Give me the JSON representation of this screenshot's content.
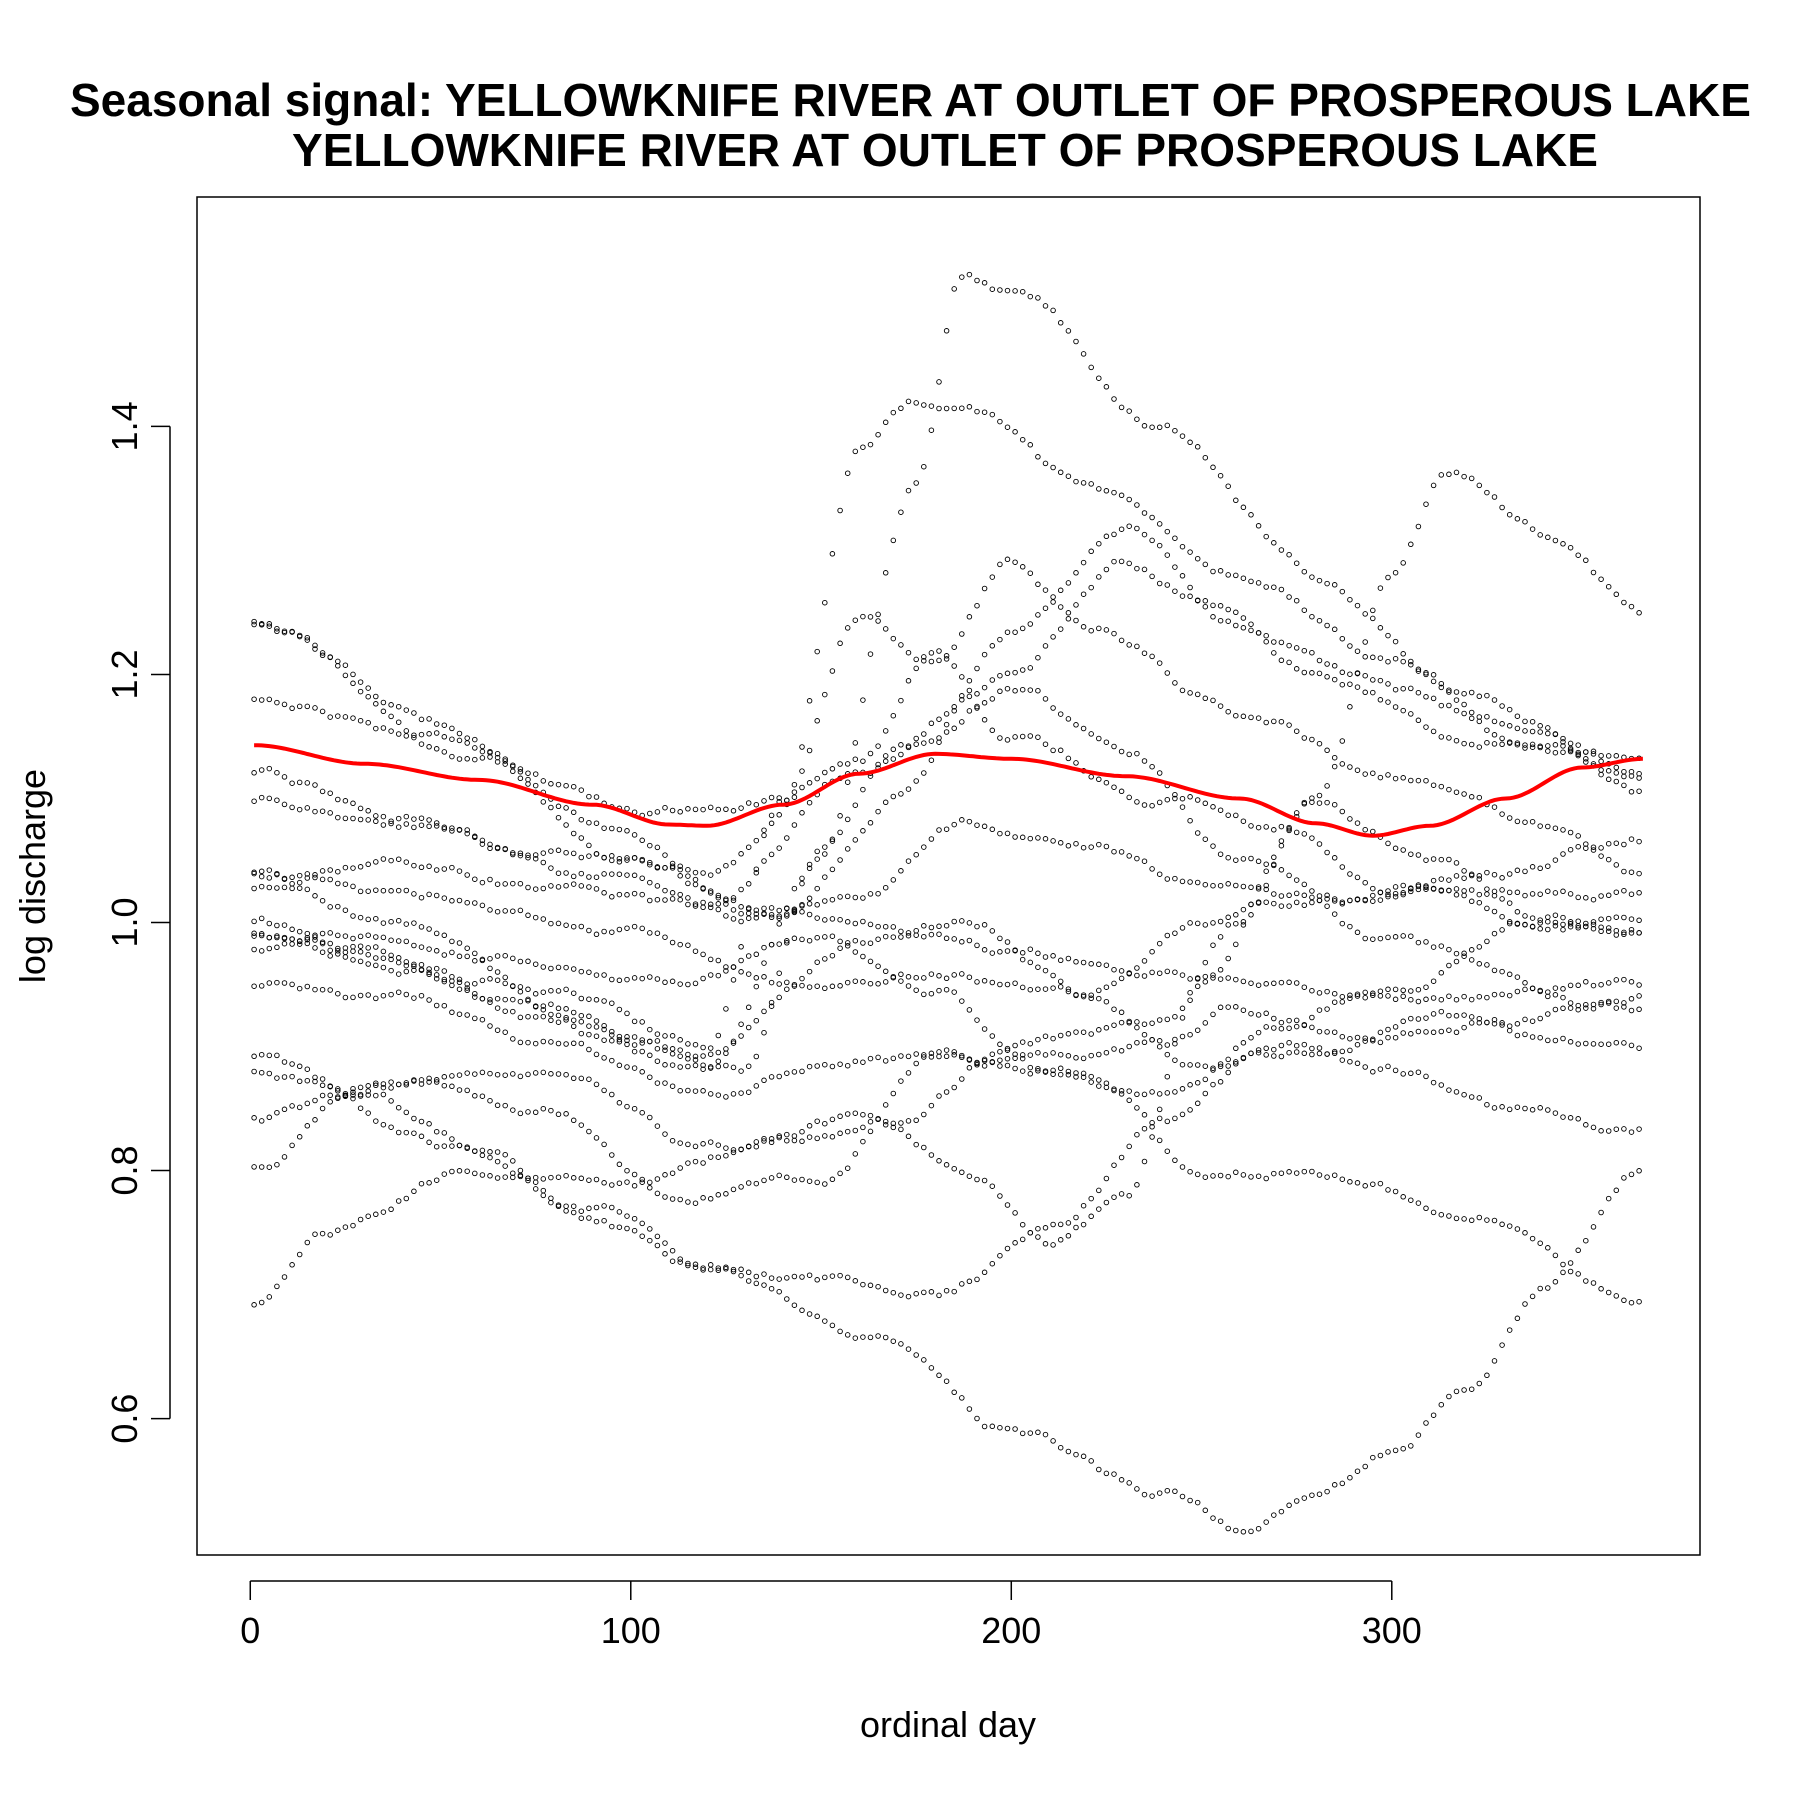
{
  "chart_data": {
    "type": "scatter",
    "title_line1": "Seasonal signal: YELLOWKNIFE RIVER AT OUTLET OF PROSPEROUS LAKE",
    "title_line2": "YELLOWKNIFE RIVER AT OUTLET OF PROSPEROUS LAKE",
    "xlabel": "ordinal day",
    "ylabel": "log discharge",
    "xlim": [
      -14,
      381
    ],
    "ylim": [
      0.49,
      1.585
    ],
    "xticks": [
      0,
      100,
      200,
      300
    ],
    "xtick_labels": [
      "0",
      "100",
      "200",
      "300"
    ],
    "yticks": [
      0.6,
      0.8,
      1.0,
      1.2,
      1.4
    ],
    "ytick_labels": [
      "0.6",
      "0.8",
      "1.0",
      "1.2",
      "1.4"
    ],
    "point_color": "#000000",
    "trend_color": "#ff0000",
    "grid": false,
    "legend": "none",
    "trend_line": {
      "x": [
        1,
        30,
        60,
        90,
        110,
        120,
        140,
        160,
        180,
        200,
        230,
        260,
        280,
        295,
        310,
        330,
        350,
        366
      ],
      "y": [
        1.143,
        1.128,
        1.115,
        1.095,
        1.079,
        1.078,
        1.095,
        1.12,
        1.136,
        1.132,
        1.118,
        1.1,
        1.08,
        1.07,
        1.078,
        1.1,
        1.125,
        1.132
      ]
    },
    "series_knots": [
      {
        "x": [
          1,
          50,
          100,
          130,
          160,
          200,
          240,
          280,
          320,
          366
        ],
        "y": [
          1.243,
          1.16,
          1.07,
          1.01,
          1.0,
          0.98,
          0.96,
          0.94,
          0.94,
          0.95
        ]
      },
      {
        "x": [
          1,
          50,
          100,
          140,
          160,
          180,
          200,
          220,
          260,
          300,
          340,
          366
        ],
        "y": [
          1.18,
          1.15,
          1.09,
          1.1,
          1.25,
          1.21,
          1.29,
          1.24,
          1.17,
          1.12,
          1.08,
          1.04
        ]
      },
      {
        "x": [
          1,
          40,
          80,
          120,
          140,
          160,
          175,
          190,
          220,
          260,
          300,
          340,
          366
        ],
        "y": [
          1.04,
          1.0,
          0.94,
          0.9,
          1.1,
          1.38,
          1.42,
          1.41,
          1.35,
          1.28,
          1.21,
          1.14,
          1.1
        ]
      },
      {
        "x": [
          1,
          40,
          80,
          120,
          150,
          175,
          187,
          200,
          240,
          280,
          320,
          366
        ],
        "y": [
          1.0,
          0.96,
          0.92,
          0.88,
          1.05,
          1.35,
          1.52,
          1.51,
          1.4,
          1.28,
          1.18,
          1.12
        ]
      },
      {
        "x": [
          1,
          60,
          100,
          130,
          150,
          170,
          200,
          230,
          260,
          300,
          366
        ],
        "y": [
          0.99,
          0.95,
          0.9,
          0.88,
          1.06,
          1.14,
          1.19,
          1.14,
          1.05,
          0.98,
          0.93
        ]
      },
      {
        "x": [
          1,
          20,
          60,
          100,
          140,
          170,
          200,
          240,
          260,
          280,
          300,
          315,
          340,
          366
        ],
        "y": [
          0.69,
          0.75,
          0.8,
          0.79,
          0.82,
          0.84,
          0.9,
          0.92,
          1.0,
          1.1,
          1.28,
          1.36,
          1.31,
          1.25
        ]
      },
      {
        "x": [
          1,
          50,
          90,
          120,
          160,
          200,
          240,
          260,
          280,
          300,
          320,
          340,
          366
        ],
        "y": [
          0.89,
          0.82,
          0.77,
          0.72,
          0.67,
          0.59,
          0.54,
          0.51,
          0.53,
          0.57,
          0.62,
          0.7,
          0.8
        ]
      },
      {
        "x": [
          1,
          40,
          80,
          110,
          150,
          180,
          220,
          250,
          280,
          320,
          366
        ],
        "y": [
          0.84,
          0.87,
          0.85,
          0.78,
          0.79,
          0.9,
          0.88,
          0.8,
          0.8,
          0.77,
          0.69
        ]
      },
      {
        "x": [
          1,
          30,
          80,
          120,
          160,
          190,
          210,
          230,
          250,
          280,
          310,
          340,
          366
        ],
        "y": [
          0.8,
          0.87,
          0.87,
          0.82,
          0.84,
          0.8,
          0.74,
          0.78,
          0.95,
          1.1,
          1.05,
          1.0,
          0.99
        ]
      },
      {
        "x": [
          1,
          40,
          80,
          120,
          160,
          200,
          230,
          250,
          280,
          320,
          366
        ],
        "y": [
          1.03,
          1.05,
          1.03,
          1.01,
          1.12,
          1.2,
          1.29,
          1.26,
          1.2,
          1.15,
          1.13
        ]
      },
      {
        "x": [
          1,
          40,
          90,
          130,
          160,
          190,
          220,
          250,
          290,
          330,
          366
        ],
        "y": [
          1.1,
          1.08,
          1.04,
          1.0,
          1.02,
          1.08,
          1.06,
          1.03,
          1.02,
          1.04,
          1.07
        ]
      },
      {
        "x": [
          1,
          30,
          70,
          110,
          150,
          180,
          210,
          240,
          270,
          300,
          340,
          366
        ],
        "y": [
          0.98,
          0.99,
          0.97,
          0.95,
          0.99,
          0.95,
          0.88,
          0.86,
          0.92,
          0.95,
          1.0,
          1.0
        ]
      },
      {
        "x": [
          1,
          40,
          80,
          120,
          160,
          200,
          240,
          260,
          290,
          330,
          366
        ],
        "y": [
          0.95,
          0.94,
          0.9,
          0.86,
          0.89,
          0.89,
          0.9,
          0.93,
          0.91,
          0.92,
          0.94
        ]
      },
      {
        "x": [
          1,
          40,
          80,
          120,
          160,
          190,
          220,
          250,
          280,
          310,
          340,
          366
        ],
        "y": [
          0.99,
          0.97,
          0.93,
          0.89,
          0.98,
          1.0,
          0.94,
          0.88,
          0.9,
          0.93,
          0.91,
          0.9
        ]
      },
      {
        "x": [
          1,
          50,
          100,
          140,
          180,
          220,
          250,
          270,
          290,
          310,
          340,
          366
        ],
        "y": [
          1.04,
          1.02,
          0.99,
          0.95,
          0.96,
          0.94,
          1.0,
          1.02,
          1.02,
          1.03,
          1.0,
          0.99
        ]
      },
      {
        "x": [
          1,
          30,
          60,
          90,
          120,
          150,
          180,
          210,
          240,
          270,
          300,
          330,
          366
        ],
        "y": [
          0.88,
          0.86,
          0.82,
          0.76,
          0.72,
          0.71,
          0.7,
          0.75,
          0.84,
          0.9,
          0.88,
          0.85,
          0.83
        ]
      },
      {
        "x": [
          1,
          60,
          100,
          140,
          170,
          200,
          230,
          260,
          290,
          330,
          366
        ],
        "y": [
          1.24,
          1.13,
          1.05,
          1.0,
          1.1,
          1.24,
          1.32,
          1.24,
          1.2,
          1.16,
          1.12
        ]
      },
      {
        "x": [
          1,
          40,
          80,
          120,
          160,
          180,
          200,
          240,
          270,
          300,
          330,
          366
        ],
        "y": [
          1.12,
          1.08,
          1.05,
          1.04,
          1.13,
          1.22,
          1.15,
          1.1,
          1.08,
          1.03,
          1.02,
          1.02
        ]
      }
    ]
  }
}
